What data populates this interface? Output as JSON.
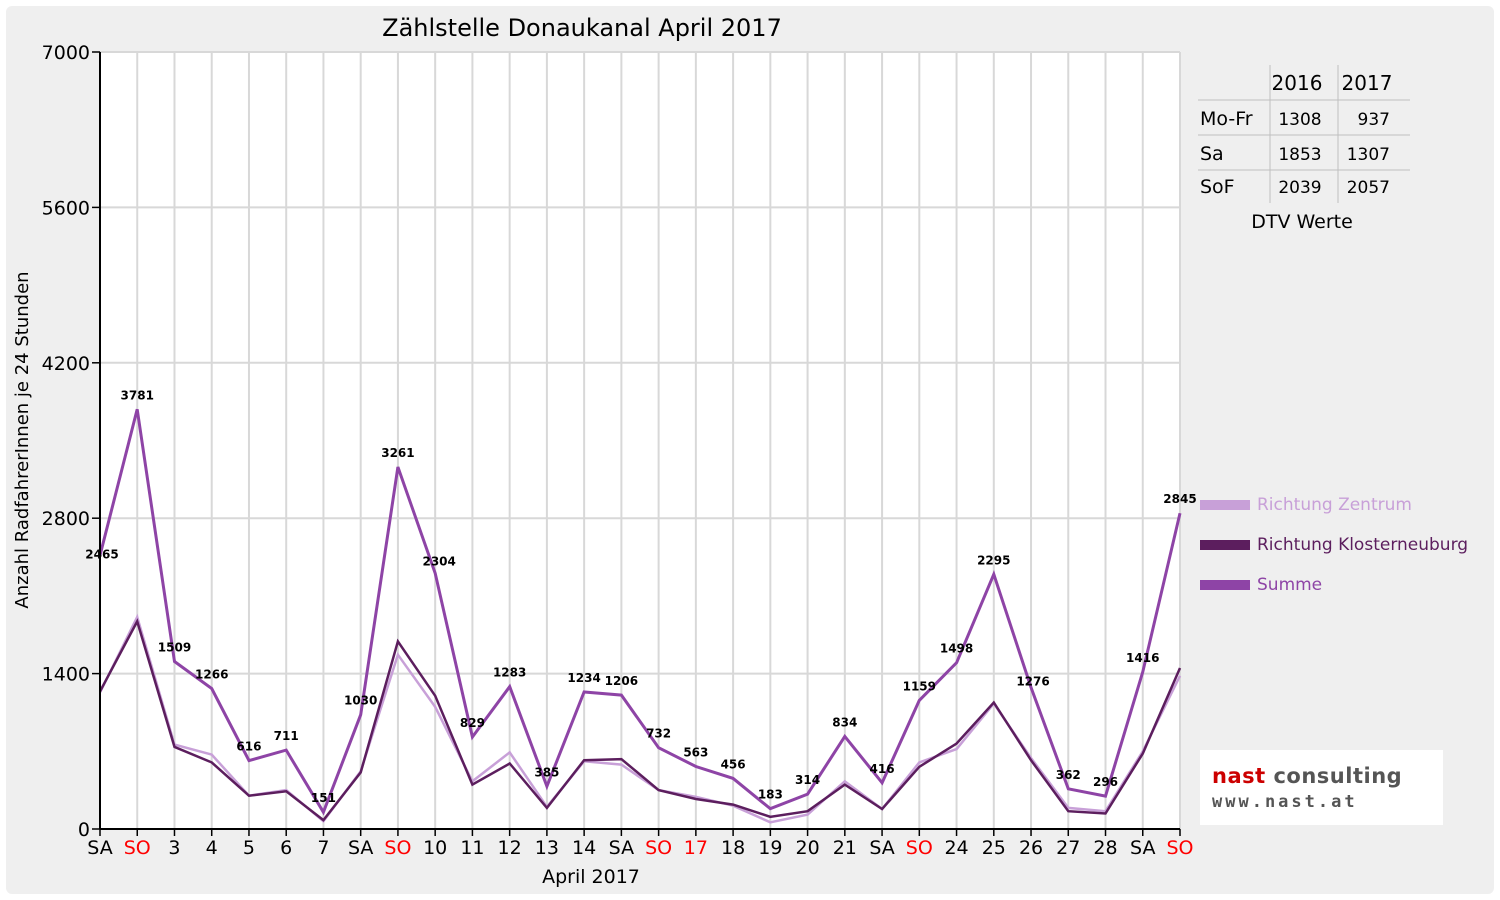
{
  "chart_data": {
    "type": "line",
    "title": "Zählstelle Donaukanal April 2017",
    "xlabel": "April 2017",
    "ylabel": "Anzahl RadfahrerInnen je 24 Stunden",
    "ylim": [
      0,
      7000
    ],
    "yticks": [
      "0",
      "1400",
      "2800",
      "4200",
      "5600",
      "7000"
    ],
    "grid": true,
    "legend_position": "right",
    "categories": [
      "SA",
      "SO",
      "3",
      "4",
      "5",
      "6",
      "7",
      "SA",
      "SO",
      "10",
      "11",
      "12",
      "13",
      "14",
      "SA",
      "SO",
      "17",
      "18",
      "19",
      "20",
      "21",
      "SA",
      "SO",
      "24",
      "25",
      "26",
      "27",
      "28",
      "SA",
      "SO"
    ],
    "highlight_categories": [
      1,
      8,
      15,
      16,
      22,
      29
    ],
    "highlight_color": "#ff0000",
    "series": [
      {
        "name": "Richtung Zentrum",
        "color": "#c8a0d8",
        "values": [
          1230,
          1910,
          760,
          670,
          300,
          350,
          70,
          520,
          1570,
          1100,
          430,
          690,
          200,
          610,
          580,
          350,
          290,
          210,
          60,
          130,
          430,
          180,
          600,
          720,
          1130,
          640,
          190,
          160,
          700,
          1380
        ]
      },
      {
        "name": "Richtung Klosterneuburg",
        "color": "#5c1e5e",
        "values": [
          1240,
          1870,
          740,
          600,
          300,
          340,
          80,
          510,
          1690,
          1200,
          400,
          590,
          190,
          620,
          630,
          350,
          270,
          220,
          110,
          160,
          400,
          180,
          560,
          770,
          1140,
          620,
          160,
          140,
          680,
          1450
        ]
      },
      {
        "name": "Summe",
        "color": "#8e44a6",
        "values": [
          2465,
          3781,
          1509,
          1266,
          616,
          711,
          151,
          1030,
          3261,
          2304,
          829,
          1283,
          385,
          1234,
          1206,
          732,
          563,
          456,
          183,
          314,
          834,
          416,
          1159,
          1498,
          2295,
          1276,
          362,
          296,
          1416,
          2845
        ]
      }
    ],
    "data_labels": [
      "2465",
      "3781",
      "1509",
      "1266",
      "616",
      "711",
      "151",
      "1030",
      "3261",
      "2304",
      "829",
      "1283",
      "385",
      "1234",
      "1206",
      "732",
      "563",
      "456",
      "183",
      "314",
      "834",
      "416",
      "1159",
      "1498",
      "2295",
      "1276",
      "362",
      "296",
      "1416",
      "2845"
    ]
  },
  "dtv_table": {
    "headers": [
      "",
      "2016",
      "2017"
    ],
    "rows": [
      {
        "label": "Mo-Fr",
        "v2016": "1308",
        "v2017": "937"
      },
      {
        "label": "Sa",
        "v2016": "1853",
        "v2017": "1307"
      },
      {
        "label": "SoF",
        "v2016": "2039",
        "v2017": "2057"
      }
    ],
    "caption": "DTV Werte"
  },
  "logo": {
    "word1": "nast",
    "word2": " consulting",
    "url": "www.nast.at"
  },
  "colors": {
    "background": "#efefef",
    "plot_bg": "#ffffff",
    "grid": "#d8d8d8"
  }
}
